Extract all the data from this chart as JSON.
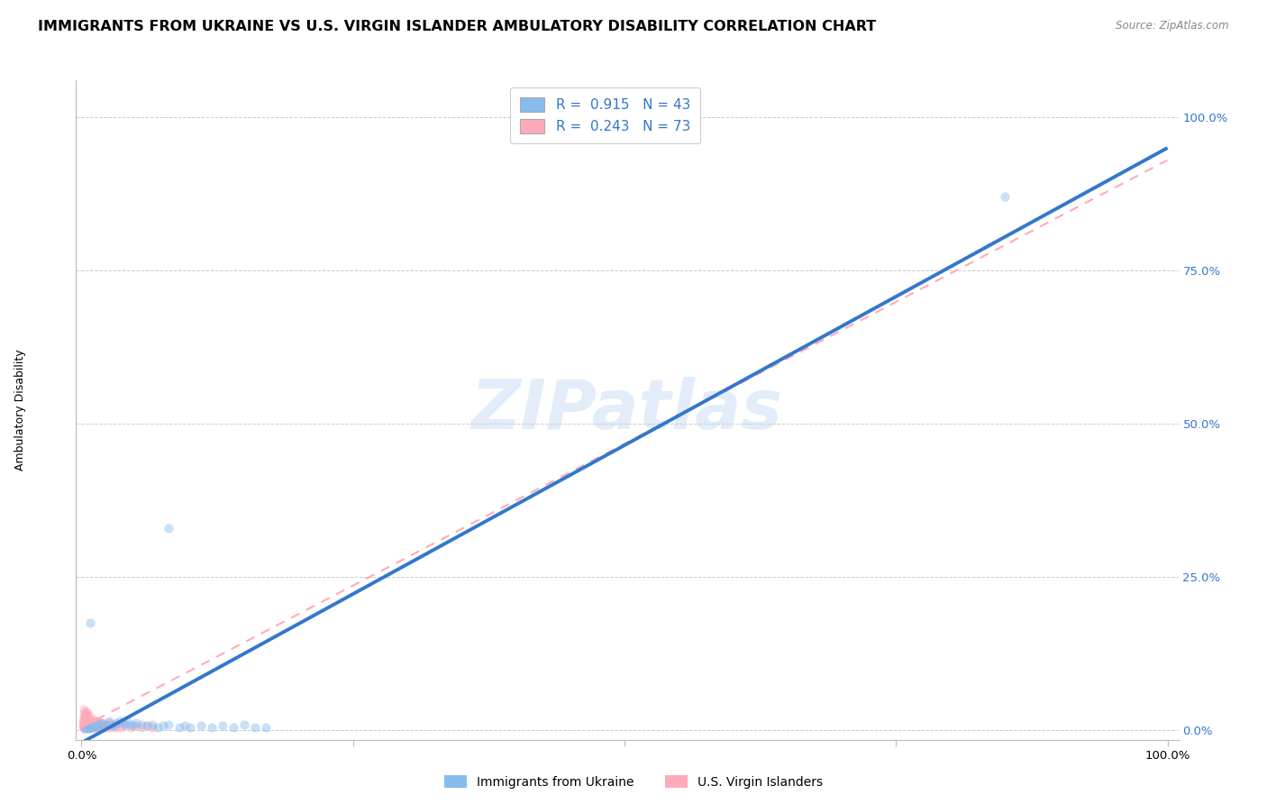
{
  "title": "IMMIGRANTS FROM UKRAINE VS U.S. VIRGIN ISLANDER AMBULATORY DISABILITY CORRELATION CHART",
  "source": "Source: ZipAtlas.com",
  "ylabel": "Ambulatory Disability",
  "legend_label1": "Immigrants from Ukraine",
  "legend_label2": "U.S. Virgin Islanders",
  "watermark": "ZIPatlas",
  "blue_color": "#88bbee",
  "blue_dark": "#3377cc",
  "pink_color": "#ffaabb",
  "pink_dark": "#dd6688",
  "blue_scatter": [
    [
      0.003,
      0.002
    ],
    [
      0.005,
      0.004
    ],
    [
      0.006,
      0.003
    ],
    [
      0.007,
      0.005
    ],
    [
      0.008,
      0.004
    ],
    [
      0.01,
      0.006
    ],
    [
      0.012,
      0.005
    ],
    [
      0.013,
      0.008
    ],
    [
      0.015,
      0.006
    ],
    [
      0.016,
      0.01
    ],
    [
      0.018,
      0.012
    ],
    [
      0.02,
      0.008
    ],
    [
      0.022,
      0.01
    ],
    [
      0.025,
      0.015
    ],
    [
      0.028,
      0.01
    ],
    [
      0.03,
      0.008
    ],
    [
      0.032,
      0.012
    ],
    [
      0.035,
      0.015
    ],
    [
      0.038,
      0.012
    ],
    [
      0.04,
      0.01
    ],
    [
      0.042,
      0.015
    ],
    [
      0.045,
      0.01
    ],
    [
      0.048,
      0.008
    ],
    [
      0.05,
      0.012
    ],
    [
      0.055,
      0.01
    ],
    [
      0.06,
      0.008
    ],
    [
      0.065,
      0.01
    ],
    [
      0.07,
      0.005
    ],
    [
      0.075,
      0.008
    ],
    [
      0.08,
      0.01
    ],
    [
      0.09,
      0.005
    ],
    [
      0.095,
      0.008
    ],
    [
      0.1,
      0.005
    ],
    [
      0.11,
      0.008
    ],
    [
      0.12,
      0.005
    ],
    [
      0.13,
      0.008
    ],
    [
      0.14,
      0.005
    ],
    [
      0.15,
      0.01
    ],
    [
      0.16,
      0.005
    ],
    [
      0.17,
      0.005
    ],
    [
      0.08,
      0.33
    ],
    [
      0.85,
      0.87
    ],
    [
      0.008,
      0.175
    ]
  ],
  "pink_scatter": [
    [
      0.002,
      0.005
    ],
    [
      0.003,
      0.012
    ],
    [
      0.003,
      0.02
    ],
    [
      0.004,
      0.008
    ],
    [
      0.004,
      0.015
    ],
    [
      0.005,
      0.01
    ],
    [
      0.005,
      0.018
    ],
    [
      0.005,
      0.025
    ],
    [
      0.006,
      0.008
    ],
    [
      0.006,
      0.015
    ],
    [
      0.007,
      0.01
    ],
    [
      0.007,
      0.018
    ],
    [
      0.008,
      0.005
    ],
    [
      0.008,
      0.012
    ],
    [
      0.009,
      0.008
    ],
    [
      0.009,
      0.015
    ],
    [
      0.01,
      0.005
    ],
    [
      0.01,
      0.012
    ],
    [
      0.01,
      0.02
    ],
    [
      0.011,
      0.008
    ],
    [
      0.011,
      0.015
    ],
    [
      0.012,
      0.005
    ],
    [
      0.012,
      0.012
    ],
    [
      0.013,
      0.008
    ],
    [
      0.013,
      0.015
    ],
    [
      0.014,
      0.005
    ],
    [
      0.014,
      0.01
    ],
    [
      0.015,
      0.008
    ],
    [
      0.015,
      0.015
    ],
    [
      0.016,
      0.005
    ],
    [
      0.016,
      0.012
    ],
    [
      0.017,
      0.008
    ],
    [
      0.018,
      0.005
    ],
    [
      0.018,
      0.012
    ],
    [
      0.019,
      0.008
    ],
    [
      0.02,
      0.005
    ],
    [
      0.02,
      0.012
    ],
    [
      0.021,
      0.008
    ],
    [
      0.022,
      0.01
    ],
    [
      0.023,
      0.005
    ],
    [
      0.024,
      0.008
    ],
    [
      0.025,
      0.012
    ],
    [
      0.026,
      0.005
    ],
    [
      0.027,
      0.008
    ],
    [
      0.028,
      0.01
    ],
    [
      0.03,
      0.005
    ],
    [
      0.032,
      0.008
    ],
    [
      0.035,
      0.005
    ],
    [
      0.038,
      0.008
    ],
    [
      0.04,
      0.01
    ],
    [
      0.045,
      0.005
    ],
    [
      0.05,
      0.008
    ],
    [
      0.003,
      0.022
    ],
    [
      0.004,
      0.028
    ],
    [
      0.005,
      0.03
    ],
    [
      0.006,
      0.025
    ],
    [
      0.002,
      0.035
    ],
    [
      0.003,
      0.03
    ],
    [
      0.004,
      0.022
    ],
    [
      0.002,
      0.02
    ],
    [
      0.002,
      0.015
    ],
    [
      0.001,
      0.01
    ],
    [
      0.001,
      0.005
    ],
    [
      0.001,
      0.015
    ],
    [
      0.002,
      0.008
    ],
    [
      0.002,
      0.025
    ],
    [
      0.003,
      0.008
    ],
    [
      0.004,
      0.005
    ],
    [
      0.055,
      0.005
    ],
    [
      0.06,
      0.008
    ],
    [
      0.065,
      0.005
    ]
  ],
  "blue_line_x": [
    0.0,
    1.0
  ],
  "blue_line_y": [
    -0.02,
    0.95
  ],
  "pink_line_x": [
    0.0,
    1.0
  ],
  "pink_line_y": [
    0.005,
    0.93
  ],
  "grid_color": "#cccccc",
  "background_color": "#ffffff",
  "title_fontsize": 11.5,
  "axis_label_fontsize": 9,
  "tick_fontsize": 9.5,
  "scatter_size": 55,
  "scatter_alpha": 0.45,
  "xlim": [
    -0.005,
    1.01
  ],
  "ylim": [
    -0.015,
    1.06
  ]
}
